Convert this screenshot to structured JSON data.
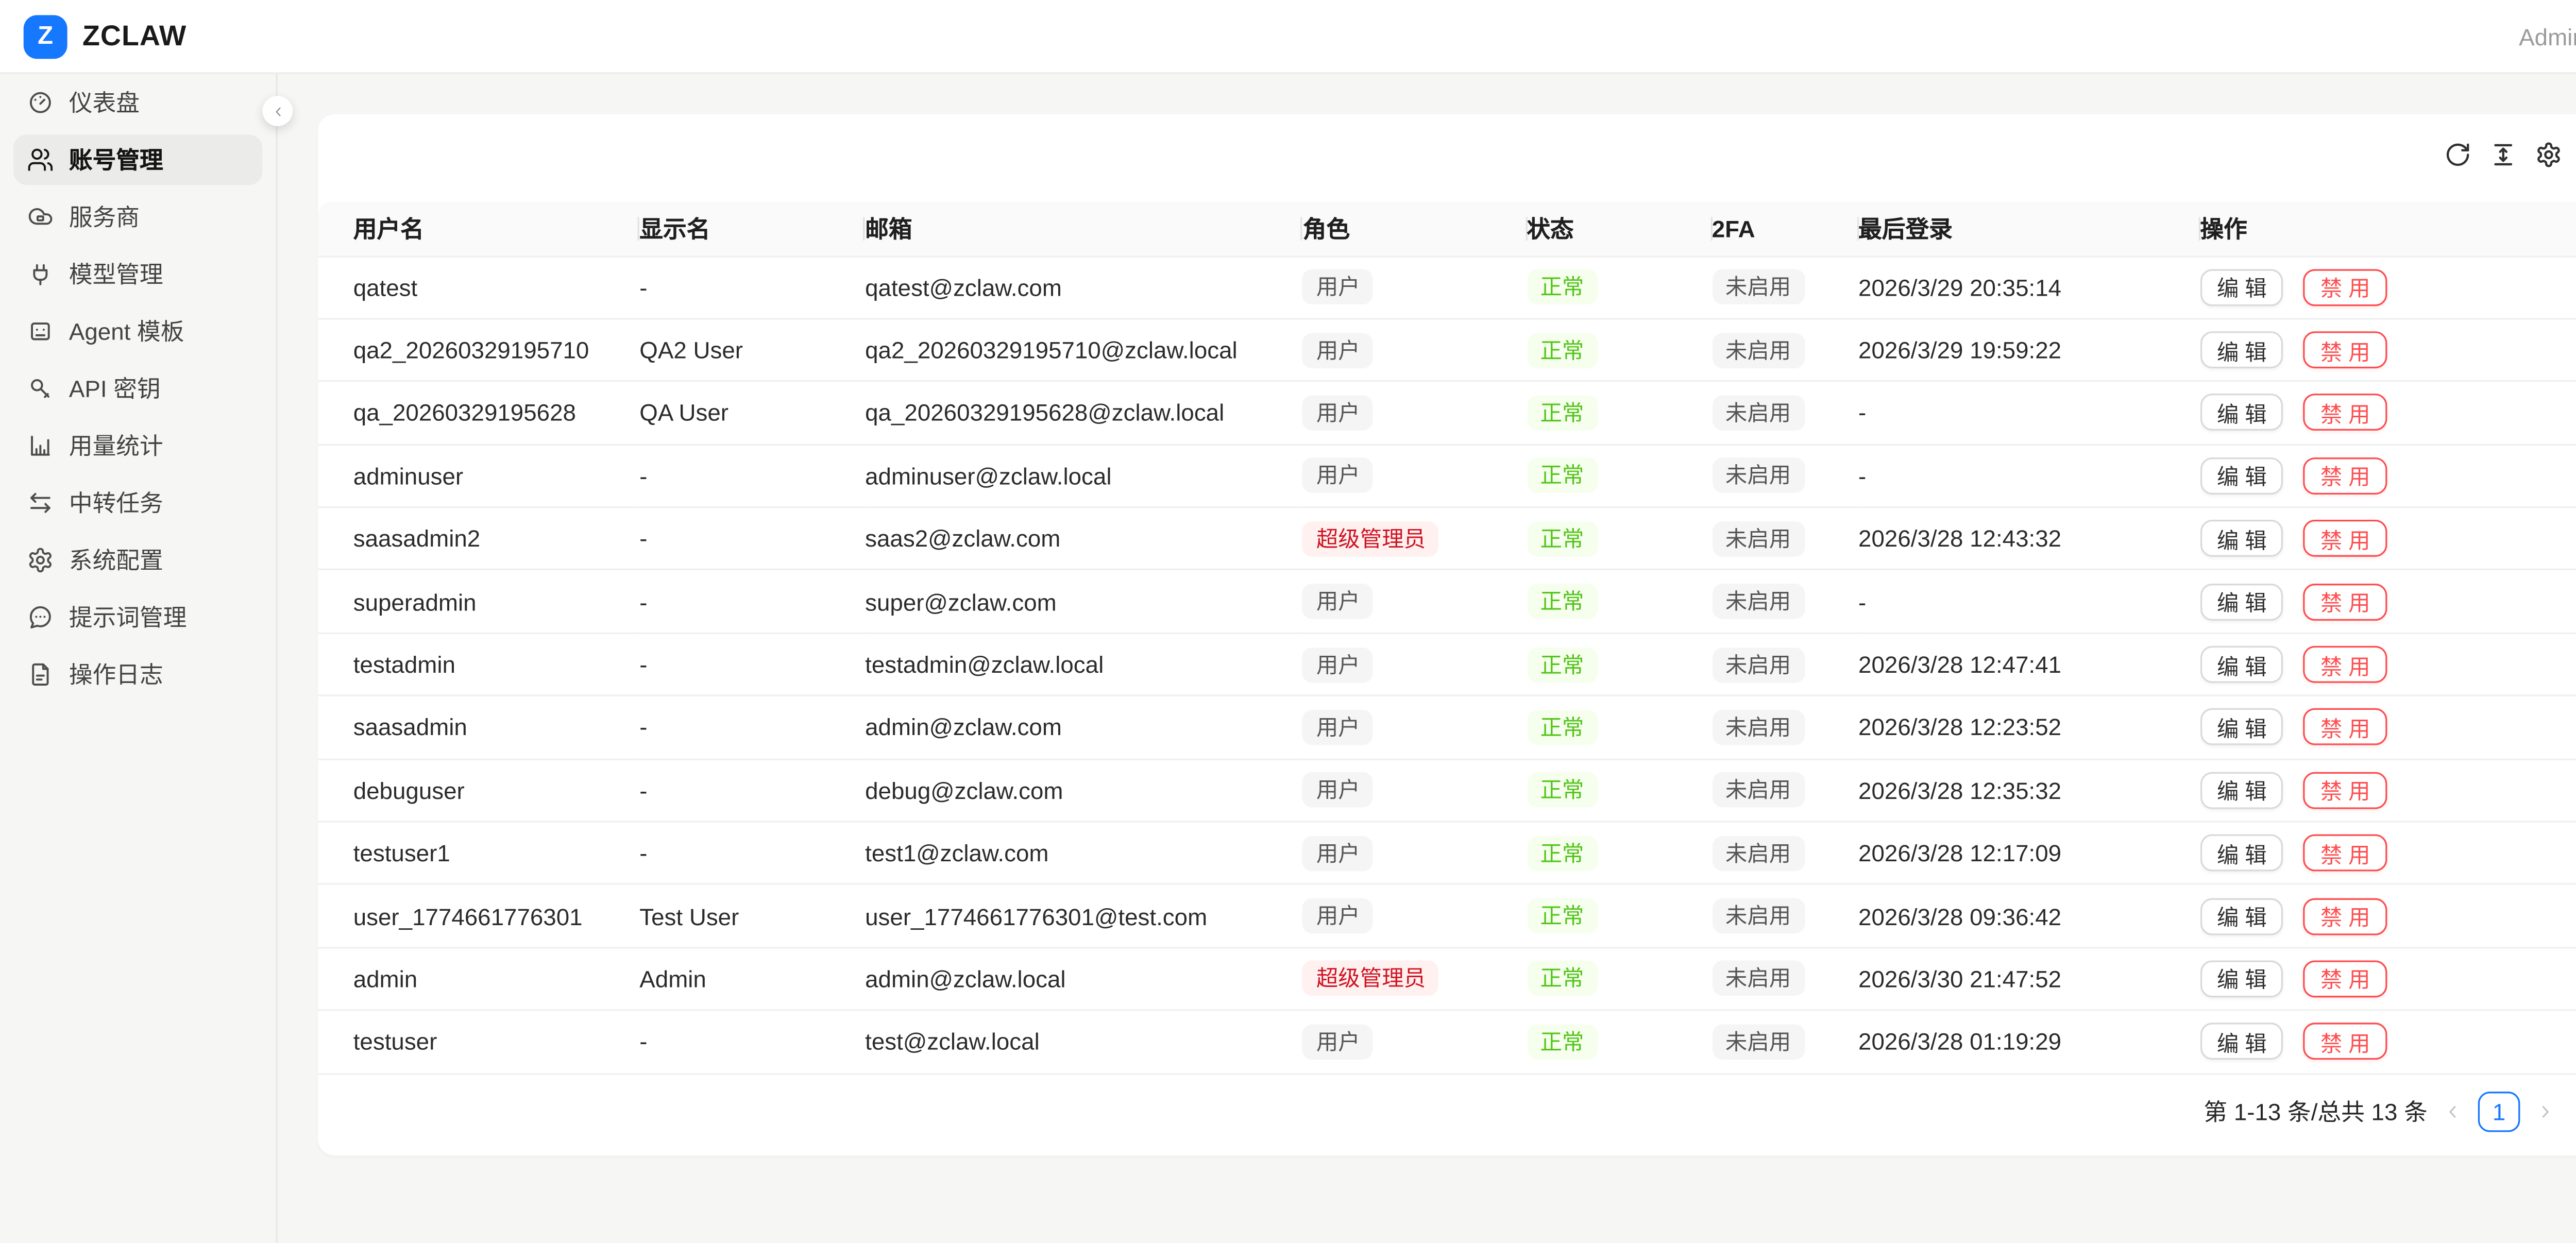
{
  "header": {
    "logo_letter": "Z",
    "brand": "ZCLAW",
    "user": "Admin"
  },
  "sidebar": {
    "items": [
      {
        "icon": "gauge",
        "label": "仪表盘",
        "active": false
      },
      {
        "icon": "users",
        "label": "账号管理",
        "active": true
      },
      {
        "icon": "cloud",
        "label": "服务商",
        "active": false
      },
      {
        "icon": "plug",
        "label": "模型管理",
        "active": false
      },
      {
        "icon": "bot",
        "label": "Agent 模板",
        "active": false
      },
      {
        "icon": "key",
        "label": "API 密钥",
        "active": false
      },
      {
        "icon": "chart",
        "label": "用量统计",
        "active": false
      },
      {
        "icon": "swap",
        "label": "中转任务",
        "active": false
      },
      {
        "icon": "gear",
        "label": "系统配置",
        "active": false
      },
      {
        "icon": "message",
        "label": "提示词管理",
        "active": false
      },
      {
        "icon": "file",
        "label": "操作日志",
        "active": false
      }
    ]
  },
  "toolbar": {
    "icons": [
      "reload",
      "density",
      "settings"
    ]
  },
  "table": {
    "columns": [
      "用户名",
      "显示名",
      "邮箱",
      "角色",
      "状态",
      "2FA",
      "最后登录",
      "操作"
    ],
    "edit_label": "编 辑",
    "disable_label": "禁 用",
    "rows": [
      {
        "username": "qatest",
        "display_name": "-",
        "email": "qatest@zclaw.com",
        "role": "用户",
        "role_variant": "gray",
        "status": "正常",
        "twofa": "未启用",
        "last_login": "2026/3/29 20:35:14"
      },
      {
        "username": "qa2_20260329195710",
        "display_name": "QA2 User",
        "email": "qa2_20260329195710@zclaw.local",
        "role": "用户",
        "role_variant": "gray",
        "status": "正常",
        "twofa": "未启用",
        "last_login": "2026/3/29 19:59:22"
      },
      {
        "username": "qa_20260329195628",
        "display_name": "QA User",
        "email": "qa_20260329195628@zclaw.local",
        "role": "用户",
        "role_variant": "gray",
        "status": "正常",
        "twofa": "未启用",
        "last_login": "-"
      },
      {
        "username": "adminuser",
        "display_name": "-",
        "email": "adminuser@zclaw.local",
        "role": "用户",
        "role_variant": "gray",
        "status": "正常",
        "twofa": "未启用",
        "last_login": "-"
      },
      {
        "username": "saasadmin2",
        "display_name": "-",
        "email": "saas2@zclaw.com",
        "role": "超级管理员",
        "role_variant": "red",
        "status": "正常",
        "twofa": "未启用",
        "last_login": "2026/3/28 12:43:32"
      },
      {
        "username": "superadmin",
        "display_name": "-",
        "email": "super@zclaw.com",
        "role": "用户",
        "role_variant": "gray",
        "status": "正常",
        "twofa": "未启用",
        "last_login": "-"
      },
      {
        "username": "testadmin",
        "display_name": "-",
        "email": "testadmin@zclaw.local",
        "role": "用户",
        "role_variant": "gray",
        "status": "正常",
        "twofa": "未启用",
        "last_login": "2026/3/28 12:47:41"
      },
      {
        "username": "saasadmin",
        "display_name": "-",
        "email": "admin@zclaw.com",
        "role": "用户",
        "role_variant": "gray",
        "status": "正常",
        "twofa": "未启用",
        "last_login": "2026/3/28 12:23:52"
      },
      {
        "username": "debuguser",
        "display_name": "-",
        "email": "debug@zclaw.com",
        "role": "用户",
        "role_variant": "gray",
        "status": "正常",
        "twofa": "未启用",
        "last_login": "2026/3/28 12:35:32"
      },
      {
        "username": "testuser1",
        "display_name": "-",
        "email": "test1@zclaw.com",
        "role": "用户",
        "role_variant": "gray",
        "status": "正常",
        "twofa": "未启用",
        "last_login": "2026/3/28 12:17:09"
      },
      {
        "username": "user_1774661776301",
        "display_name": "Test User",
        "email": "user_1774661776301@test.com",
        "role": "用户",
        "role_variant": "gray",
        "status": "正常",
        "twofa": "未启用",
        "last_login": "2026/3/28 09:36:42"
      },
      {
        "username": "admin",
        "display_name": "Admin",
        "email": "admin@zclaw.local",
        "role": "超级管理员",
        "role_variant": "red",
        "status": "正常",
        "twofa": "未启用",
        "last_login": "2026/3/30 21:47:52"
      },
      {
        "username": "testuser",
        "display_name": "-",
        "email": "test@zclaw.local",
        "role": "用户",
        "role_variant": "gray",
        "status": "正常",
        "twofa": "未启用",
        "last_login": "2026/3/28 01:19:29"
      }
    ]
  },
  "pagination": {
    "summary": "第 1-13 条/总共 13 条",
    "page": "1"
  },
  "theme": {
    "primary": "#1677ff",
    "page_bg": "#f6f6f4",
    "badge_green_bg": "#f6ffed",
    "badge_green_text": "#52c41a",
    "badge_red_bg": "#fff1f0",
    "badge_red_text": "#cf1322",
    "danger": "#ff4d4f"
  }
}
